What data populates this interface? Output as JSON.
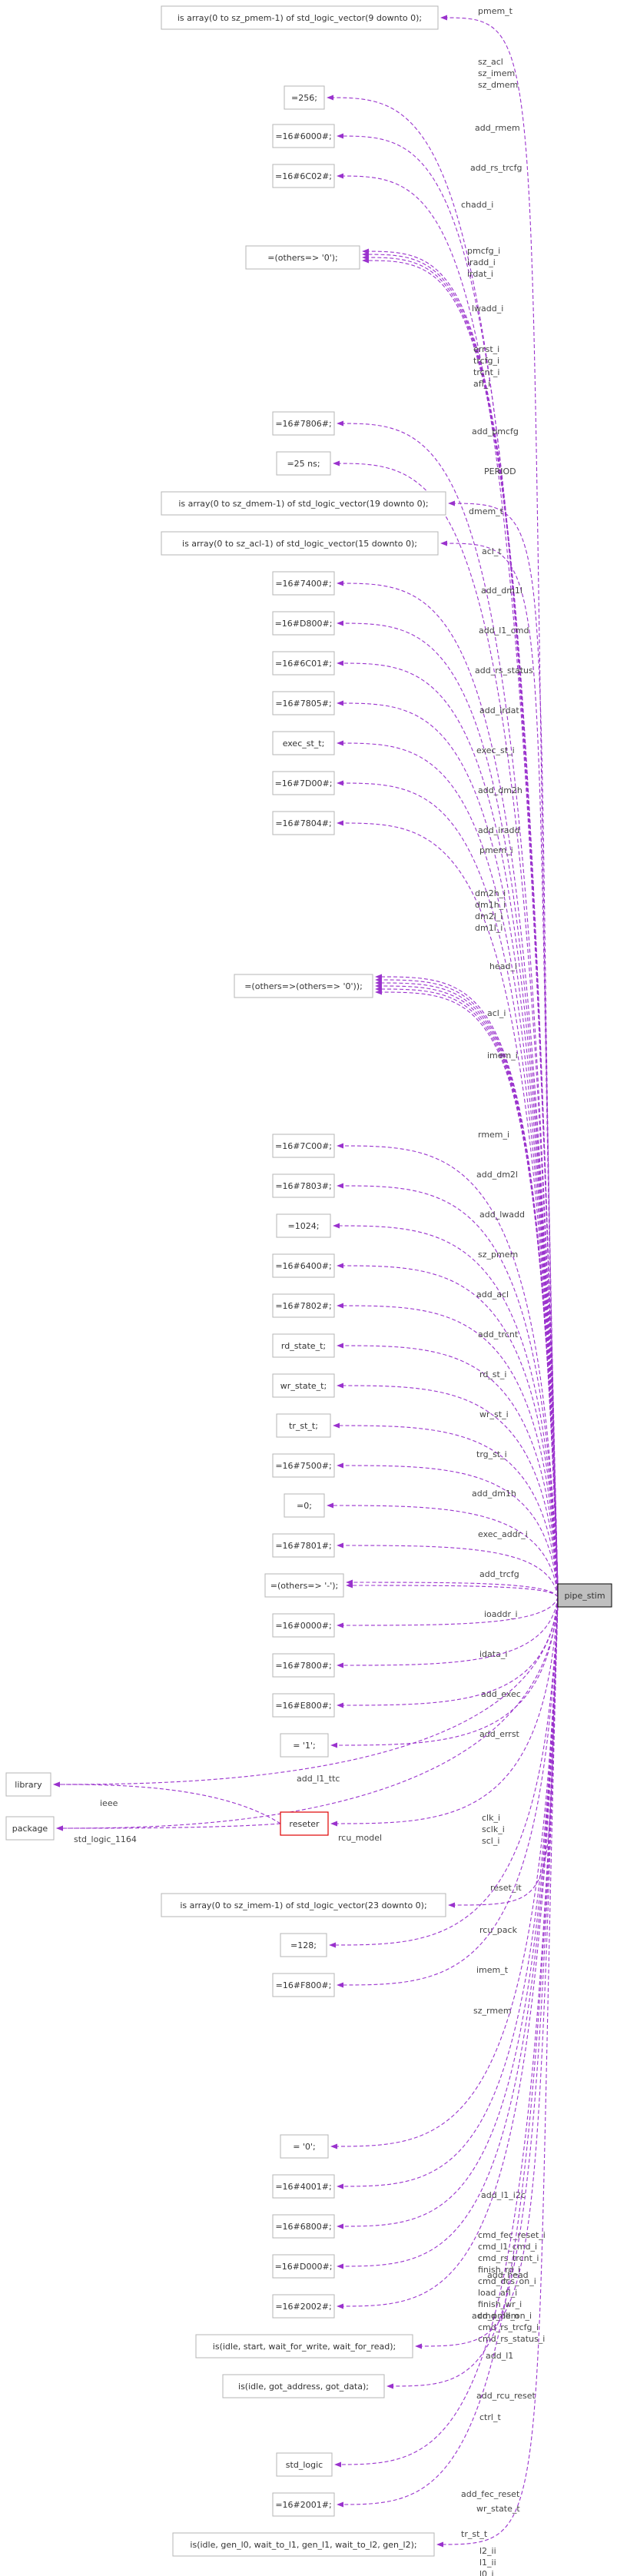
{
  "main_node": {
    "label": "pipe_stim"
  },
  "reseter": {
    "label": "reseter"
  },
  "nodes": [
    {
      "id": "n1",
      "label": "is array(0 to sz_pmem-1) of std_logic_vector(9 downto 0);"
    },
    {
      "id": "n2",
      "label": "=256;"
    },
    {
      "id": "n3",
      "label": "=16#6000#;"
    },
    {
      "id": "n4",
      "label": "=16#6C02#;"
    },
    {
      "id": "n5",
      "label": "=(others=> '0');"
    },
    {
      "id": "n6",
      "label": "=16#7806#;"
    },
    {
      "id": "n7",
      "label": "=25 ns;"
    },
    {
      "id": "n8",
      "label": "is array(0 to sz_dmem-1) of std_logic_vector(19 downto 0);"
    },
    {
      "id": "n9",
      "label": "is array(0 to sz_acl-1) of std_logic_vector(15 downto 0);"
    },
    {
      "id": "n10",
      "label": "=16#7400#;"
    },
    {
      "id": "n11",
      "label": "=16#D800#;"
    },
    {
      "id": "n12",
      "label": "=16#6C01#;"
    },
    {
      "id": "n13",
      "label": "=16#7805#;"
    },
    {
      "id": "n14",
      "label": "exec_st_t;"
    },
    {
      "id": "n15",
      "label": "=16#7D00#;"
    },
    {
      "id": "n16",
      "label": "=16#7804#;"
    },
    {
      "id": "n17",
      "label": "=(others=>(others=> '0'));"
    },
    {
      "id": "n18",
      "label": "=16#7C00#;"
    },
    {
      "id": "n19",
      "label": "=16#7803#;"
    },
    {
      "id": "n20",
      "label": "=1024;"
    },
    {
      "id": "n21",
      "label": "=16#6400#;"
    },
    {
      "id": "n22",
      "label": "=16#7802#;"
    },
    {
      "id": "n23",
      "label": "rd_state_t;"
    },
    {
      "id": "n24",
      "label": "wr_state_t;"
    },
    {
      "id": "n25",
      "label": "tr_st_t;"
    },
    {
      "id": "n26",
      "label": "=16#7500#;"
    },
    {
      "id": "n27",
      "label": "=0;"
    },
    {
      "id": "n28",
      "label": "=16#7801#;"
    },
    {
      "id": "n29",
      "label": "=(others=> '-');"
    },
    {
      "id": "n30",
      "label": "=16#0000#;"
    },
    {
      "id": "n31",
      "label": "=16#7800#;"
    },
    {
      "id": "n32",
      "label": "=16#E800#;"
    },
    {
      "id": "n33",
      "label": "= '1';"
    },
    {
      "id": "n34",
      "label": "library"
    },
    {
      "id": "n35",
      "label": "package"
    },
    {
      "id": "n36",
      "label": "is array(0 to sz_imem-1) of std_logic_vector(23 downto 0);"
    },
    {
      "id": "n37",
      "label": "=128;"
    },
    {
      "id": "n38",
      "label": "=16#F800#;"
    },
    {
      "id": "n39",
      "label": "= '0';"
    },
    {
      "id": "n40",
      "label": "=16#4001#;"
    },
    {
      "id": "n41",
      "label": "=16#6800#;"
    },
    {
      "id": "n42",
      "label": "=16#D000#;"
    },
    {
      "id": "n43",
      "label": "=16#2002#;"
    },
    {
      "id": "n44",
      "label": "is(idle, start, wait_for_write, wait_for_read);"
    },
    {
      "id": "n45",
      "label": "is(idle, got_address, got_data);"
    },
    {
      "id": "n46",
      "label": "std_logic"
    },
    {
      "id": "n47",
      "label": "=16#2001#;"
    },
    {
      "id": "n48",
      "label": "is(idle, gen_l0, wait_to_l1, gen_l1, wait_to_l2, gen_l2);"
    }
  ],
  "edges": [
    {
      "to": "n1",
      "label": "pmem_t"
    },
    {
      "to": "n2",
      "label": "sz_acl\nsz_imem\nsz_dmem"
    },
    {
      "to": "n3",
      "label": "add_rmem"
    },
    {
      "to": "n4",
      "label": "add_rs_trcfg"
    },
    {
      "to": "n5",
      "label": "chadd_i"
    },
    {
      "to": "n5",
      "label": "pmcfg_i\niradd_i\nirdat_i"
    },
    {
      "to": "n5",
      "label": "lwadd_i"
    },
    {
      "to": "n5",
      "label": "errst_i\ntrcfg_i\ntrcnt_i\nafl_i"
    },
    {
      "to": "n6",
      "label": "add_pmcfg"
    },
    {
      "to": "n7",
      "label": "PERIOD"
    },
    {
      "to": "n8",
      "label": "dmem_t"
    },
    {
      "to": "n9",
      "label": "acl_t"
    },
    {
      "to": "n10",
      "label": "add_dm1l"
    },
    {
      "to": "n11",
      "label": "add_l1_cmd"
    },
    {
      "to": "n12",
      "label": "add_rs_status"
    },
    {
      "to": "n13",
      "label": "add_irdat"
    },
    {
      "to": "n14",
      "label": "exec_st_i"
    },
    {
      "to": "n15",
      "label": "add_dm2h"
    },
    {
      "to": "n16",
      "label": "add_iradd"
    },
    {
      "to": "n17",
      "label": "pmem_i"
    },
    {
      "to": "n17",
      "label": "dm2h_i\ndm1h_i\ndm2l_i\ndm1l_i"
    },
    {
      "to": "n17",
      "label": "head_i"
    },
    {
      "to": "n17",
      "label": "acl_i"
    },
    {
      "to": "n17",
      "label": "imem_i"
    },
    {
      "to": "n17",
      "label": "rmem_i"
    },
    {
      "to": "n18",
      "label": "add_dm2l"
    },
    {
      "to": "n19",
      "label": "add_lwadd"
    },
    {
      "to": "n20",
      "label": "sz_pmem"
    },
    {
      "to": "n21",
      "label": "add_acl"
    },
    {
      "to": "n22",
      "label": "add_trcnt"
    },
    {
      "to": "n23",
      "label": "rd_st_i"
    },
    {
      "to": "n24",
      "label": "wr_st_i"
    },
    {
      "to": "n25",
      "label": "trg_st_i"
    },
    {
      "to": "n26",
      "label": "add_dm1h"
    },
    {
      "to": "n27",
      "label": "exec_addr_i"
    },
    {
      "to": "n28",
      "label": "add_trcfg"
    },
    {
      "to": "n29",
      "label": "ioaddr_i"
    },
    {
      "to": "n29",
      "label": "idata_i"
    },
    {
      "to": "n30",
      "label": "add_exec"
    },
    {
      "to": "n31",
      "label": "add_errst"
    },
    {
      "to": "n32",
      "label": "add_l1_ttc"
    },
    {
      "to": "n33",
      "label": "clk_i\nsclk_i\nscl_i"
    },
    {
      "to": "n34",
      "label": "rcu_model"
    },
    {
      "to": "reseter",
      "label": "reset_it"
    },
    {
      "to": "n35",
      "label": "rcu_pack"
    },
    {
      "to": "n36",
      "label": "imem_t"
    },
    {
      "to": "n37",
      "label": "sz_rmem"
    },
    {
      "to": "n38",
      "label": "add_l1_i2c"
    },
    {
      "to": "n39",
      "label": "cmd_fec_reset_i\ncmd_l1_cmd_i\ncmd_rs_trcnt_i\nfinish_rd_i\ncmd_dcs_on_i\nload_afl_i\nfinish_wr_i\ncmd_dll_on_i\ncmd_rs_trcfg_i\ncmd_rs_status_i"
    },
    {
      "to": "n40",
      "label": "add_head"
    },
    {
      "to": "n41",
      "label": "add_pmem"
    },
    {
      "to": "n42",
      "label": "add_l1"
    },
    {
      "to": "n43",
      "label": "add_rcu_reset"
    },
    {
      "to": "n44",
      "label": "ctrl_t"
    },
    {
      "to": "n45",
      "label": "wr_state_t"
    },
    {
      "to": "n46",
      "label": "l2_ii\nl1_ii\nl0_i\nl1_i\nl2_i"
    },
    {
      "to": "n47",
      "label": "add_fec_reset"
    },
    {
      "to": "n48",
      "label": "tr_st_t"
    }
  ],
  "reseter_edges": [
    {
      "to": "n34",
      "label": "ieee"
    },
    {
      "to": "n35",
      "label": "std_logic_1164"
    }
  ],
  "colors": {
    "edge": "#9a32cd",
    "main_fill": "#bfbfbf",
    "reseter_border": "#e00000",
    "box_border": "#b5b5b5"
  }
}
